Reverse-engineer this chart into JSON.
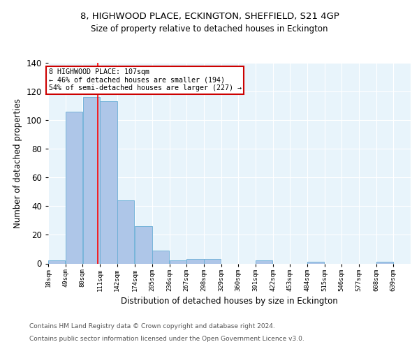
{
  "title": "8, HIGHWOOD PLACE, ECKINGTON, SHEFFIELD, S21 4GP",
  "subtitle": "Size of property relative to detached houses in Eckington",
  "xlabel": "Distribution of detached houses by size in Eckington",
  "ylabel": "Number of detached properties",
  "bar_edges": [
    18,
    49,
    80,
    111,
    142,
    174,
    205,
    236,
    267,
    298,
    329,
    360,
    391,
    422,
    453,
    484,
    515,
    546,
    577,
    608,
    639
  ],
  "bar_heights": [
    2,
    106,
    116,
    113,
    44,
    26,
    9,
    2,
    3,
    3,
    0,
    0,
    2,
    0,
    0,
    1,
    0,
    0,
    0,
    1
  ],
  "bar_color": "#aec6e8",
  "bar_edge_color": "#6aaed6",
  "annotation_text": "8 HIGHWOOD PLACE: 107sqm\n← 46% of detached houses are smaller (194)\n54% of semi-detached houses are larger (227) →",
  "property_size": 107,
  "red_line_x": 107,
  "ylim": [
    0,
    140
  ],
  "yticks": [
    0,
    20,
    40,
    60,
    80,
    100,
    120,
    140
  ],
  "tick_labels": [
    "18sqm",
    "49sqm",
    "80sqm",
    "111sqm",
    "142sqm",
    "174sqm",
    "205sqm",
    "236sqm",
    "267sqm",
    "298sqm",
    "329sqm",
    "360sqm",
    "391sqm",
    "422sqm",
    "453sqm",
    "484sqm",
    "515sqm",
    "546sqm",
    "577sqm",
    "608sqm",
    "639sqm"
  ],
  "footer_line1": "Contains HM Land Registry data © Crown copyright and database right 2024.",
  "footer_line2": "Contains public sector information licensed under the Open Government Licence v3.0.",
  "bg_color": "#e8f4fb",
  "annotation_box_color": "white",
  "annotation_box_edge": "#cc0000",
  "grid_color": "white",
  "title_fontsize": 9.5,
  "subtitle_fontsize": 8.5
}
